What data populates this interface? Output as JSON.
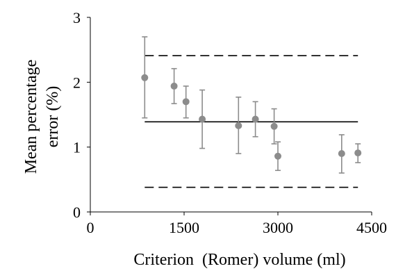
{
  "chart_data": {
    "type": "scatter",
    "title": "",
    "xlabel": "Criterion  (Romer) volume (ml)",
    "ylabel_lines": [
      "Mean percentage",
      "error (%)"
    ],
    "xlim": [
      0,
      4500
    ],
    "ylim": [
      0,
      3
    ],
    "x_ticks": [
      0,
      1500,
      3000,
      4500
    ],
    "y_ticks": [
      0,
      1,
      2,
      3
    ],
    "grid": false,
    "points": [
      {
        "x": 870,
        "y": 2.07,
        "err_low": 1.45,
        "err_high": 2.7
      },
      {
        "x": 1340,
        "y": 1.94,
        "err_low": 1.67,
        "err_high": 2.21
      },
      {
        "x": 1530,
        "y": 1.7,
        "err_low": 1.45,
        "err_high": 1.94
      },
      {
        "x": 1790,
        "y": 1.43,
        "err_low": 0.98,
        "err_high": 1.88
      },
      {
        "x": 2370,
        "y": 1.33,
        "err_low": 0.9,
        "err_high": 1.77
      },
      {
        "x": 2640,
        "y": 1.43,
        "err_low": 1.16,
        "err_high": 1.7
      },
      {
        "x": 2940,
        "y": 1.32,
        "err_low": 1.05,
        "err_high": 1.59
      },
      {
        "x": 3000,
        "y": 0.86,
        "err_low": 0.64,
        "err_high": 1.08
      },
      {
        "x": 4020,
        "y": 0.9,
        "err_low": 0.6,
        "err_high": 1.19
      },
      {
        "x": 4280,
        "y": 0.91,
        "err_low": 0.76,
        "err_high": 1.05
      }
    ],
    "reference_lines": [
      {
        "y": 1.39,
        "style": "solid"
      },
      {
        "y": 2.41,
        "style": "dashed"
      },
      {
        "y": 0.38,
        "style": "dashed"
      }
    ],
    "reference_x_range": [
      870,
      4280
    ],
    "colors": {
      "point": "#8c8c8c",
      "error_bar": "#8c8c8c",
      "reference": "#000000",
      "axis": "#000000"
    }
  }
}
